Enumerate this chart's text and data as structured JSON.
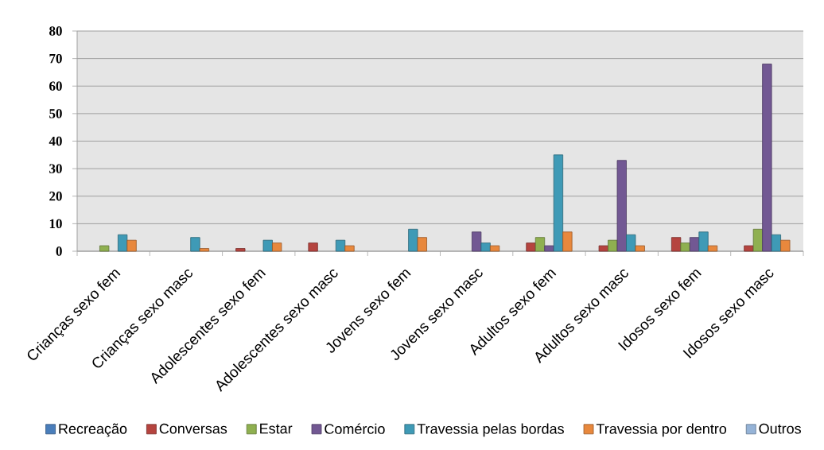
{
  "chart_data": {
    "type": "bar",
    "categories": [
      "Crianças sexo fem",
      "Crianças sexo masc",
      "Adolescentes sexo fem",
      "Adolescentes sexo masc",
      "Jovens sexo fem",
      "Jovens sexo masc",
      "Adultos sexo fem",
      "Adultos sexo masc",
      "Idosos sexo fem",
      "Idosos sexo masc"
    ],
    "series": [
      {
        "name": "Recreação",
        "color": "#4a7ebb",
        "values": [
          null,
          null,
          null,
          null,
          null,
          null,
          null,
          null,
          null,
          null
        ]
      },
      {
        "name": "Conversas",
        "color": "#b5443f",
        "values": [
          null,
          null,
          1,
          3,
          null,
          null,
          3,
          2,
          5,
          2
        ]
      },
      {
        "name": "Estar",
        "color": "#8fb050",
        "values": [
          2,
          null,
          null,
          null,
          null,
          null,
          5,
          4,
          3,
          8
        ]
      },
      {
        "name": "Comércio",
        "color": "#725893",
        "values": [
          null,
          null,
          null,
          null,
          null,
          7,
          2,
          33,
          5,
          68
        ]
      },
      {
        "name": "Travessia pelas bordas",
        "color": "#3f9ab6",
        "values": [
          6,
          5,
          4,
          4,
          8,
          3,
          35,
          6,
          7,
          6
        ]
      },
      {
        "name": "Travessia por dentro",
        "color": "#e8883d",
        "values": [
          4,
          1,
          3,
          2,
          5,
          2,
          7,
          2,
          2,
          4
        ]
      },
      {
        "name": "Outros",
        "color": "#95b3d7",
        "values": [
          null,
          null,
          null,
          null,
          null,
          null,
          null,
          null,
          null,
          null
        ]
      }
    ],
    "ylim": [
      0,
      80
    ],
    "yticks": [
      0,
      10,
      20,
      30,
      40,
      50,
      60,
      70,
      80
    ],
    "grid": "y",
    "legend": "bottom"
  }
}
